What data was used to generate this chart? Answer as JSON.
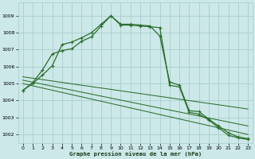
{
  "xlabel": "Graphe pression niveau de la mer (hPa)",
  "ylabel": "",
  "background_color": "#cce8e8",
  "grid_color": "#aacece",
  "line_color": "#2d6e2d",
  "x_ticks": [
    0,
    1,
    2,
    3,
    4,
    5,
    6,
    7,
    8,
    9,
    10,
    11,
    12,
    13,
    14,
    15,
    16,
    17,
    18,
    19,
    20,
    21,
    22,
    23
  ],
  "ylim": [
    1001.5,
    1009.8
  ],
  "yticks": [
    1002,
    1003,
    1004,
    1005,
    1006,
    1007,
    1008,
    1009
  ],
  "series": [
    {
      "x": [
        0,
        1,
        2,
        3,
        4,
        5,
        6,
        7,
        8,
        9,
        10,
        11,
        12,
        13,
        14,
        15,
        16,
        17,
        18,
        19,
        20,
        21,
        22,
        23
      ],
      "y": [
        1004.6,
        1005.0,
        1005.5,
        1006.05,
        1007.3,
        1007.45,
        1007.7,
        1008.0,
        1008.5,
        1009.0,
        1008.5,
        1008.5,
        1008.45,
        1008.4,
        1007.8,
        1005.1,
        1004.9,
        1003.4,
        1003.35,
        1002.9,
        1002.5,
        1002.1,
        1001.85,
        1001.75
      ]
    },
    {
      "x": [
        0,
        1,
        2,
        3,
        4,
        5,
        6,
        7,
        8,
        9,
        10,
        11,
        12,
        13,
        14,
        15,
        16,
        17,
        18,
        19,
        20,
        21,
        22,
        23
      ],
      "y": [
        1004.6,
        1005.05,
        1005.8,
        1006.75,
        1006.95,
        1007.05,
        1007.5,
        1007.75,
        1008.4,
        1009.0,
        1008.45,
        1008.45,
        1008.4,
        1008.35,
        1008.3,
        1004.9,
        1004.8,
        1003.3,
        1003.2,
        1002.85,
        1002.4,
        1001.95,
        1001.8,
        1001.7
      ]
    },
    {
      "x": [
        0,
        23
      ],
      "y": [
        1005.4,
        1003.5
      ]
    },
    {
      "x": [
        0,
        23
      ],
      "y": [
        1005.2,
        1002.5
      ]
    },
    {
      "x": [
        0,
        23
      ],
      "y": [
        1005.0,
        1002.0
      ]
    }
  ],
  "marker_series": [
    0,
    1
  ]
}
